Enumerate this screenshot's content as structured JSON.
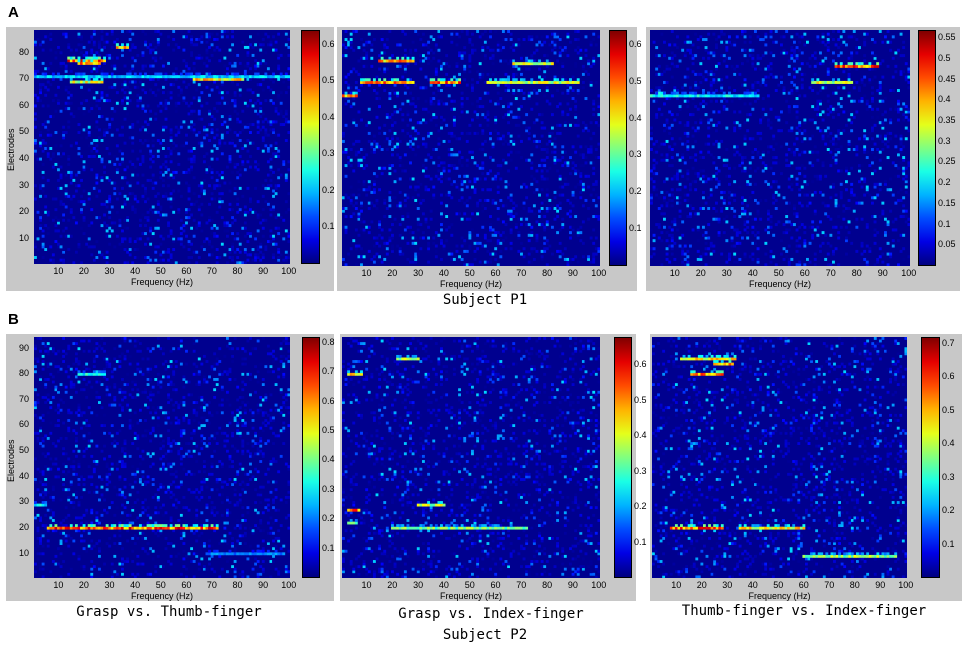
{
  "labels": {
    "panel_a": "A",
    "panel_b": "B"
  },
  "captions": {
    "subject_p1": "Subject P1",
    "subject_p2": "Subject P2",
    "cond1": "Grasp vs. Thumb-finger",
    "cond2": "Grasp vs. Index-finger",
    "cond3": "Thumb-finger vs. Index-finger"
  },
  "axes": {
    "xlabel": "Frequency (Hz)",
    "ylabel": "Electrodes"
  },
  "colors": {
    "jet_low": "#00008f",
    "jet_high": "#800000",
    "panel_bg": "#c8c8c8"
  },
  "chart_data": [
    {
      "type": "heatmap",
      "id": "A1",
      "xlim": [
        1,
        100
      ],
      "ylim": [
        1,
        88
      ],
      "n_electrodes": 88,
      "xticks": [
        "10",
        "20",
        "30",
        "40",
        "50",
        "60",
        "70",
        "80",
        "90",
        "100"
      ],
      "yticks": [
        "10",
        "20",
        "30",
        "40",
        "50",
        "60",
        "70",
        "80"
      ],
      "ytick_values": [
        10,
        20,
        30,
        40,
        50,
        60,
        70,
        80
      ],
      "clim": [
        0,
        0.64
      ],
      "cticks": [
        "0.1",
        "0.2",
        "0.3",
        "0.4",
        "0.5",
        "0.6"
      ],
      "ctick_values": [
        0.1,
        0.2,
        0.3,
        0.4,
        0.5,
        0.6
      ],
      "hot_spots": [
        {
          "electrode": 77,
          "f0": 14,
          "f1": 28,
          "value": 0.62
        },
        {
          "electrode": 76,
          "f0": 18,
          "f1": 26,
          "value": 0.55
        },
        {
          "electrode": 70,
          "f0": 63,
          "f1": 82,
          "value": 0.5
        },
        {
          "electrode": 69,
          "f0": 15,
          "f1": 27,
          "value": 0.45
        },
        {
          "electrode": 82,
          "f0": 33,
          "f1": 37,
          "value": 0.5
        },
        {
          "electrode": 71,
          "f0": 1,
          "f1": 100,
          "value": 0.25
        }
      ]
    },
    {
      "type": "heatmap",
      "id": "A2",
      "xlim": [
        1,
        100
      ],
      "ylim": [
        1,
        88
      ],
      "n_electrodes": 88,
      "xticks": [
        "10",
        "20",
        "30",
        "40",
        "50",
        "60",
        "70",
        "80",
        "90",
        "100"
      ],
      "yticks": [],
      "ytick_values": [],
      "clim": [
        0,
        0.64
      ],
      "cticks": [
        "0.1",
        "0.2",
        "0.3",
        "0.4",
        "0.5",
        "0.6"
      ],
      "ctick_values": [
        0.1,
        0.2,
        0.3,
        0.4,
        0.5,
        0.6
      ],
      "hot_spots": [
        {
          "electrode": 77,
          "f0": 15,
          "f1": 28,
          "value": 0.55
        },
        {
          "electrode": 69,
          "f0": 8,
          "f1": 28,
          "value": 0.55
        },
        {
          "electrode": 69,
          "f0": 35,
          "f1": 46,
          "value": 0.6
        },
        {
          "electrode": 76,
          "f0": 67,
          "f1": 82,
          "value": 0.45
        },
        {
          "electrode": 69,
          "f0": 57,
          "f1": 92,
          "value": 0.45
        },
        {
          "electrode": 64,
          "f0": 1,
          "f1": 6,
          "value": 0.55
        }
      ]
    },
    {
      "type": "heatmap",
      "id": "A3",
      "xlim": [
        1,
        100
      ],
      "ylim": [
        1,
        88
      ],
      "n_electrodes": 88,
      "xticks": [
        "10",
        "20",
        "30",
        "40",
        "50",
        "60",
        "70",
        "80",
        "90",
        "100"
      ],
      "yticks": [],
      "ytick_values": [],
      "clim": [
        0,
        0.57
      ],
      "cticks": [
        "0.05",
        "0.1",
        "0.15",
        "0.2",
        "0.25",
        "0.3",
        "0.35",
        "0.4",
        "0.45",
        "0.5",
        "0.55"
      ],
      "ctick_values": [
        0.05,
        0.1,
        0.15,
        0.2,
        0.25,
        0.3,
        0.35,
        0.4,
        0.45,
        0.5,
        0.55
      ],
      "hot_spots": [
        {
          "electrode": 75,
          "f0": 72,
          "f1": 88,
          "value": 0.55
        },
        {
          "electrode": 64,
          "f0": 1,
          "f1": 6,
          "value": 0.55
        },
        {
          "electrode": 64,
          "f0": 1,
          "f1": 42,
          "value": 0.25
        },
        {
          "electrode": 69,
          "f0": 63,
          "f1": 78,
          "value": 0.4
        }
      ]
    },
    {
      "type": "heatmap",
      "id": "B1",
      "xlim": [
        1,
        100
      ],
      "ylim": [
        1,
        94
      ],
      "n_electrodes": 94,
      "xticks": [
        "10",
        "20",
        "30",
        "40",
        "50",
        "60",
        "70",
        "80",
        "90",
        "100"
      ],
      "yticks": [
        "10",
        "20",
        "30",
        "40",
        "50",
        "60",
        "70",
        "80",
        "90"
      ],
      "ytick_values": [
        10,
        20,
        30,
        40,
        50,
        60,
        70,
        80,
        90
      ],
      "clim": [
        0,
        0.82
      ],
      "cticks": [
        "0.1",
        "0.2",
        "0.3",
        "0.4",
        "0.5",
        "0.6",
        "0.7",
        "0.8"
      ],
      "ctick_values": [
        0.1,
        0.2,
        0.3,
        0.4,
        0.5,
        0.6,
        0.7,
        0.8
      ],
      "hot_spots": [
        {
          "electrode": 20,
          "f0": 6,
          "f1": 72,
          "value": 0.78
        },
        {
          "electrode": 80,
          "f0": 18,
          "f1": 28,
          "value": 0.4
        },
        {
          "electrode": 29,
          "f0": 1,
          "f1": 5,
          "value": 0.35
        },
        {
          "electrode": 10,
          "f0": 68,
          "f1": 98,
          "value": 0.25
        }
      ]
    },
    {
      "type": "heatmap",
      "id": "B2",
      "xlim": [
        1,
        100
      ],
      "ylim": [
        1,
        94
      ],
      "n_electrodes": 94,
      "xticks": [
        "10",
        "20",
        "30",
        "40",
        "50",
        "60",
        "70",
        "80",
        "90",
        "100"
      ],
      "yticks": [],
      "ytick_values": [],
      "clim": [
        0,
        0.68
      ],
      "cticks": [
        "0.1",
        "0.2",
        "0.3",
        "0.4",
        "0.5",
        "0.6"
      ],
      "ctick_values": [
        0.1,
        0.2,
        0.3,
        0.4,
        0.5,
        0.6
      ],
      "hot_spots": [
        {
          "electrode": 20,
          "f0": 20,
          "f1": 72,
          "value": 0.4
        },
        {
          "electrode": 27,
          "f0": 3,
          "f1": 7,
          "value": 0.65
        },
        {
          "electrode": 29,
          "f0": 30,
          "f1": 40,
          "value": 0.45
        },
        {
          "electrode": 80,
          "f0": 3,
          "f1": 8,
          "value": 0.5
        },
        {
          "electrode": 86,
          "f0": 22,
          "f1": 30,
          "value": 0.45
        },
        {
          "electrode": 22,
          "f0": 3,
          "f1": 6,
          "value": 0.45
        }
      ]
    },
    {
      "type": "heatmap",
      "id": "B3",
      "xlim": [
        1,
        100
      ],
      "ylim": [
        1,
        94
      ],
      "n_electrodes": 94,
      "xticks": [
        "10",
        "20",
        "30",
        "40",
        "50",
        "60",
        "70",
        "80",
        "90",
        "100"
      ],
      "yticks": [],
      "ytick_values": [],
      "clim": [
        0,
        0.72
      ],
      "cticks": [
        "0.1",
        "0.2",
        "0.3",
        "0.4",
        "0.5",
        "0.6",
        "0.7"
      ],
      "ctick_values": [
        0.1,
        0.2,
        0.3,
        0.4,
        0.5,
        0.6,
        0.7
      ],
      "hot_spots": [
        {
          "electrode": 20,
          "f0": 8,
          "f1": 28,
          "value": 0.68
        },
        {
          "electrode": 20,
          "f0": 35,
          "f1": 60,
          "value": 0.55
        },
        {
          "electrode": 80,
          "f0": 16,
          "f1": 28,
          "value": 0.65
        },
        {
          "electrode": 86,
          "f0": 12,
          "f1": 33,
          "value": 0.55
        },
        {
          "electrode": 84,
          "f0": 25,
          "f1": 32,
          "value": 0.6
        },
        {
          "electrode": 9,
          "f0": 60,
          "f1": 96,
          "value": 0.45
        }
      ]
    }
  ]
}
